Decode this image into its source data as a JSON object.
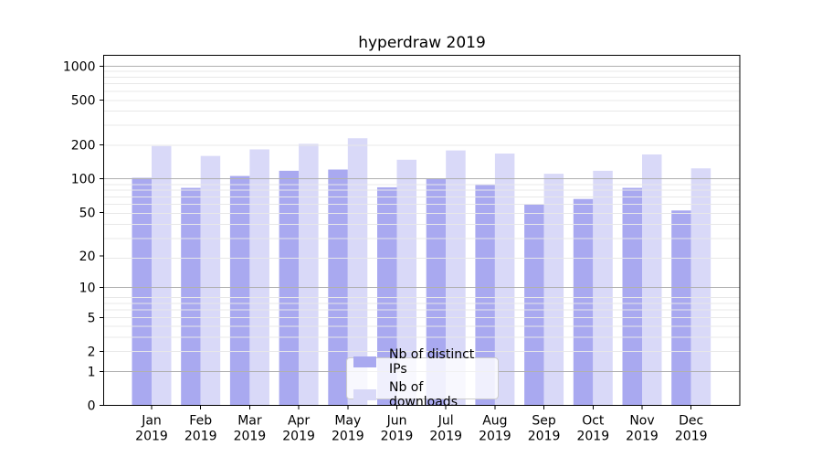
{
  "chart_data": {
    "type": "bar",
    "title": "hyperdraw 2019",
    "categories": [
      "Jan 2019",
      "Feb 2019",
      "Mar 2019",
      "Apr 2019",
      "May 2019",
      "Jun 2019",
      "Jul 2019",
      "Aug 2019",
      "Sep 2019",
      "Oct 2019",
      "Nov 2019",
      "Dec 2019"
    ],
    "series": [
      {
        "name": "Nb of distinct IPs",
        "color": "#a9a9f0",
        "values": [
          102,
          83,
          106,
          118,
          121,
          84,
          100,
          88,
          59,
          66,
          83,
          52
        ]
      },
      {
        "name": "Nb of downloads",
        "color": "#d9d9f8",
        "values": [
          196,
          160,
          183,
          205,
          230,
          148,
          179,
          168,
          111,
          118,
          165,
          124
        ]
      }
    ],
    "xlabel": "",
    "ylabel": "",
    "yscale": "log1p",
    "ylim": [
      0,
      1250
    ],
    "yticks": [
      0,
      1,
      2,
      5,
      10,
      20,
      50,
      100,
      200,
      500,
      1000
    ],
    "grid": true,
    "grid_major_color": "#b0b0b0",
    "grid_minor_color": "#e8e8e8",
    "legend_position": "lower center"
  }
}
